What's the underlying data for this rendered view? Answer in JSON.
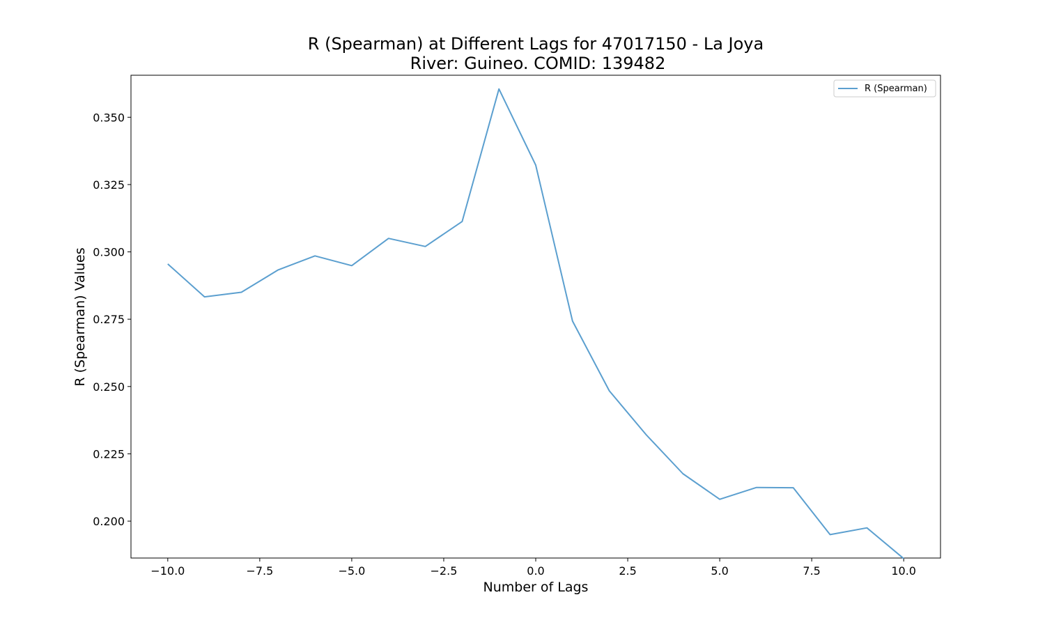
{
  "chart_data": {
    "type": "line",
    "title_line1": "R (Spearman) at Different Lags for 47017150 - La Joya",
    "title_line2": "River: Guineo. COMID: 139482",
    "xlabel": "Number of Lags",
    "ylabel": "R (Spearman) Values",
    "xlim": [
      -11,
      11
    ],
    "ylim": [
      0.1863,
      0.3656
    ],
    "x_ticks": [
      -10.0,
      -7.5,
      -5.0,
      -2.5,
      0.0,
      2.5,
      5.0,
      7.5,
      10.0
    ],
    "x_tick_labels": [
      "−10.0",
      "−7.5",
      "−5.0",
      "−2.5",
      "0.0",
      "2.5",
      "5.0",
      "7.5",
      "10.0"
    ],
    "y_ticks": [
      0.2,
      0.225,
      0.25,
      0.275,
      0.3,
      0.325,
      0.35
    ],
    "y_tick_labels": [
      "0.200",
      "0.225",
      "0.250",
      "0.275",
      "0.300",
      "0.325",
      "0.350"
    ],
    "grid": false,
    "legend_position": "top-right",
    "series": [
      {
        "name": "R (Spearman)",
        "color": "#5b9fcf",
        "x": [
          -10,
          -9,
          -8,
          -7,
          -6,
          -5,
          -4,
          -3,
          -2,
          -1,
          0,
          1,
          2,
          3,
          4,
          5,
          6,
          7,
          8,
          9,
          10
        ],
        "y": [
          0.2955,
          0.2833,
          0.285,
          0.2933,
          0.2985,
          0.2949,
          0.305,
          0.302,
          0.3113,
          0.3605,
          0.3322,
          0.2743,
          0.2484,
          0.2321,
          0.2176,
          0.2081,
          0.2125,
          0.2124,
          0.195,
          0.1975,
          0.1861
        ]
      }
    ]
  }
}
